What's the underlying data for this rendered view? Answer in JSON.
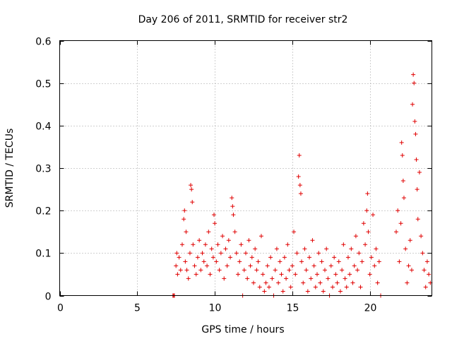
{
  "chart_data": {
    "type": "scatter",
    "title": "Day 206 of 2011, SRMTID for receiver str2",
    "xlabel": "GPS time / hours",
    "ylabel": "SRMTID / TECUs",
    "xlim": [
      0,
      24
    ],
    "ylim": [
      0,
      0.6
    ],
    "xticks": [
      0,
      5,
      10,
      15,
      20
    ],
    "yticks": [
      0,
      0.1,
      0.2,
      0.3,
      0.4,
      0.5,
      0.6
    ],
    "xtick_labels": [
      "0",
      "5",
      "10",
      "15",
      "20"
    ],
    "ytick_labels": [
      "0",
      "0.1",
      "0.2",
      "0.3",
      "0.4",
      "0.5",
      "0.6"
    ],
    "grid": true,
    "marker": "+",
    "color": "#e00000",
    "series": [
      {
        "name": "str2",
        "points": [
          [
            7.3,
            0.0
          ],
          [
            7.35,
            0.0
          ],
          [
            7.4,
            0.0
          ],
          [
            7.5,
            0.07
          ],
          [
            7.55,
            0.1
          ],
          [
            7.6,
            0.05
          ],
          [
            7.7,
            0.09
          ],
          [
            7.8,
            0.06
          ],
          [
            7.9,
            0.12
          ],
          [
            8.0,
            0.18
          ],
          [
            8.05,
            0.2
          ],
          [
            8.1,
            0.08
          ],
          [
            8.15,
            0.15
          ],
          [
            8.2,
            0.06
          ],
          [
            8.3,
            0.04
          ],
          [
            8.4,
            0.1
          ],
          [
            8.45,
            0.26
          ],
          [
            8.5,
            0.25
          ],
          [
            8.55,
            0.22
          ],
          [
            8.6,
            0.12
          ],
          [
            8.7,
            0.07
          ],
          [
            8.8,
            0.05
          ],
          [
            8.9,
            0.09
          ],
          [
            9.0,
            0.13
          ],
          [
            9.1,
            0.06
          ],
          [
            9.2,
            0.1
          ],
          [
            9.3,
            0.08
          ],
          [
            9.4,
            0.12
          ],
          [
            9.5,
            0.07
          ],
          [
            9.6,
            0.15
          ],
          [
            9.7,
            0.05
          ],
          [
            9.8,
            0.11
          ],
          [
            9.9,
            0.09
          ],
          [
            9.95,
            0.19
          ],
          [
            10.0,
            0.17
          ],
          [
            10.1,
            0.08
          ],
          [
            10.2,
            0.12
          ],
          [
            10.3,
            0.06
          ],
          [
            10.4,
            0.1
          ],
          [
            10.5,
            0.14
          ],
          [
            10.6,
            0.04
          ],
          [
            10.7,
            0.11
          ],
          [
            10.8,
            0.07
          ],
          [
            10.9,
            0.13
          ],
          [
            11.0,
            0.09
          ],
          [
            11.1,
            0.23
          ],
          [
            11.15,
            0.21
          ],
          [
            11.2,
            0.19
          ],
          [
            11.3,
            0.15
          ],
          [
            11.4,
            0.1
          ],
          [
            11.5,
            0.05
          ],
          [
            11.6,
            0.08
          ],
          [
            11.7,
            0.12
          ],
          [
            11.8,
            0.0
          ],
          [
            11.9,
            0.06
          ],
          [
            12.0,
            0.1
          ],
          [
            12.1,
            0.04
          ],
          [
            12.2,
            0.13
          ],
          [
            12.3,
            0.07
          ],
          [
            12.4,
            0.09
          ],
          [
            12.5,
            0.03
          ],
          [
            12.6,
            0.11
          ],
          [
            12.7,
            0.06
          ],
          [
            12.8,
            0.08
          ],
          [
            12.9,
            0.02
          ],
          [
            13.0,
            0.14
          ],
          [
            13.1,
            0.05
          ],
          [
            13.2,
            0.01
          ],
          [
            13.3,
            0.03
          ],
          [
            13.4,
            0.07
          ],
          [
            13.5,
            0.02
          ],
          [
            13.6,
            0.09
          ],
          [
            13.7,
            0.04
          ],
          [
            13.8,
            0.0
          ],
          [
            13.9,
            0.06
          ],
          [
            14.0,
            0.11
          ],
          [
            14.1,
            0.03
          ],
          [
            14.2,
            0.08
          ],
          [
            14.3,
            0.05
          ],
          [
            14.4,
            0.01
          ],
          [
            14.5,
            0.09
          ],
          [
            14.6,
            0.04
          ],
          [
            14.7,
            0.12
          ],
          [
            14.8,
            0.06
          ],
          [
            14.9,
            0.02
          ],
          [
            15.0,
            0.07
          ],
          [
            15.1,
            0.15
          ],
          [
            15.2,
            0.05
          ],
          [
            15.3,
            0.1
          ],
          [
            15.4,
            0.28
          ],
          [
            15.45,
            0.33
          ],
          [
            15.5,
            0.26
          ],
          [
            15.55,
            0.24
          ],
          [
            15.6,
            0.08
          ],
          [
            15.7,
            0.03
          ],
          [
            15.8,
            0.11
          ],
          [
            15.9,
            0.06
          ],
          [
            16.0,
            0.01
          ],
          [
            16.1,
            0.09
          ],
          [
            16.2,
            0.04
          ],
          [
            16.3,
            0.13
          ],
          [
            16.4,
            0.07
          ],
          [
            16.5,
            0.02
          ],
          [
            16.6,
            0.05
          ],
          [
            16.7,
            0.1
          ],
          [
            16.8,
            0.03
          ],
          [
            16.9,
            0.08
          ],
          [
            17.0,
            0.01
          ],
          [
            17.1,
            0.06
          ],
          [
            17.2,
            0.11
          ],
          [
            17.3,
            0.04
          ],
          [
            17.4,
            0.0
          ],
          [
            17.5,
            0.07
          ],
          [
            17.6,
            0.02
          ],
          [
            17.7,
            0.09
          ],
          [
            17.8,
            0.05
          ],
          [
            17.9,
            0.03
          ],
          [
            18.0,
            0.08
          ],
          [
            18.1,
            0.01
          ],
          [
            18.2,
            0.06
          ],
          [
            18.3,
            0.12
          ],
          [
            18.4,
            0.04
          ],
          [
            18.5,
            0.02
          ],
          [
            18.6,
            0.09
          ],
          [
            18.7,
            0.05
          ],
          [
            18.8,
            0.11
          ],
          [
            18.9,
            0.03
          ],
          [
            19.0,
            0.07
          ],
          [
            19.1,
            0.14
          ],
          [
            19.2,
            0.06
          ],
          [
            19.3,
            0.1
          ],
          [
            19.4,
            0.02
          ],
          [
            19.5,
            0.08
          ],
          [
            19.6,
            0.17
          ],
          [
            19.7,
            0.12
          ],
          [
            19.8,
            0.2
          ],
          [
            19.85,
            0.24
          ],
          [
            19.9,
            0.15
          ],
          [
            20.0,
            0.05
          ],
          [
            20.1,
            0.09
          ],
          [
            20.2,
            0.19
          ],
          [
            20.3,
            0.07
          ],
          [
            20.4,
            0.11
          ],
          [
            20.5,
            0.03
          ],
          [
            20.6,
            0.08
          ],
          [
            20.7,
            0.0
          ],
          [
            21.7,
            0.15
          ],
          [
            21.8,
            0.2
          ],
          [
            21.9,
            0.08
          ],
          [
            22.0,
            0.17
          ],
          [
            22.05,
            0.36
          ],
          [
            22.1,
            0.33
          ],
          [
            22.15,
            0.27
          ],
          [
            22.2,
            0.23
          ],
          [
            22.3,
            0.11
          ],
          [
            22.4,
            0.03
          ],
          [
            22.5,
            0.07
          ],
          [
            22.6,
            0.13
          ],
          [
            22.7,
            0.06
          ],
          [
            22.75,
            0.45
          ],
          [
            22.8,
            0.52
          ],
          [
            22.85,
            0.5
          ],
          [
            22.9,
            0.41
          ],
          [
            22.95,
            0.38
          ],
          [
            23.0,
            0.32
          ],
          [
            23.05,
            0.25
          ],
          [
            23.1,
            0.18
          ],
          [
            23.2,
            0.29
          ],
          [
            23.3,
            0.14
          ],
          [
            23.4,
            0.1
          ],
          [
            23.5,
            0.06
          ],
          [
            23.6,
            0.02
          ],
          [
            23.7,
            0.08
          ],
          [
            23.8,
            0.05
          ],
          [
            23.9,
            0.03
          ]
        ]
      }
    ]
  }
}
